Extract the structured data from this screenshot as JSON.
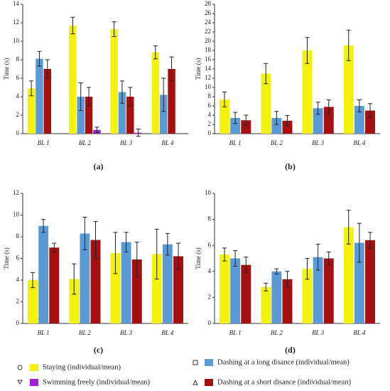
{
  "chart_data": [
    {
      "type": "bar",
      "label": "(a)",
      "ylabel": "Time (s)",
      "categories": [
        "BL 1",
        "BL 2",
        "BL 3",
        "BL 4"
      ],
      "ylim": [
        0,
        14
      ],
      "yticks": [
        0,
        2,
        4,
        6,
        8,
        10,
        12,
        14
      ],
      "series": [
        {
          "name": "Staying (individual/mean)",
          "color": "#f2f20a",
          "values": [
            4.9,
            11.7,
            11.3,
            8.8
          ],
          "errors": [
            0.8,
            0.9,
            0.8,
            0.7
          ]
        },
        {
          "name": "Dashing at a long disance (individual/mean)",
          "color": "#5b9bd5",
          "values": [
            8.1,
            4.0,
            4.5,
            4.2
          ],
          "errors": [
            0.8,
            1.5,
            1.2,
            1.8
          ]
        },
        {
          "name": "Dashing at a short disance (individual/mean)",
          "color": "#a50f0f",
          "values": [
            7.0,
            4.0,
            4.0,
            7.0
          ],
          "errors": [
            1.0,
            1.0,
            1.0,
            1.3
          ]
        },
        {
          "name": "Swimming freely (individual/mean)",
          "color": "#a020d8",
          "values": [
            null,
            0.4,
            0.1,
            null
          ],
          "errors": [
            null,
            0.3,
            0.4,
            null
          ]
        }
      ]
    },
    {
      "type": "bar",
      "label": "(b)",
      "ylabel": "Time (s)",
      "categories": [
        "BL 1",
        "BL 2",
        "BL 3",
        "BL 4"
      ],
      "ylim": [
        0,
        28
      ],
      "yticks": [
        0,
        2,
        4,
        6,
        8,
        10,
        12,
        14,
        16,
        18,
        20,
        22,
        24,
        26,
        28
      ],
      "series": [
        {
          "color": "#f2f20a",
          "values": [
            7.4,
            13.0,
            18.0,
            19.1
          ],
          "errors": [
            1.6,
            2.2,
            2.8,
            3.3
          ]
        },
        {
          "color": "#5b9bd5",
          "values": [
            3.4,
            3.4,
            5.5,
            6.0
          ],
          "errors": [
            1.2,
            1.4,
            1.3,
            1.3
          ]
        },
        {
          "color": "#a50f0f",
          "values": [
            2.9,
            2.8,
            5.8,
            5.0
          ],
          "errors": [
            1.1,
            1.1,
            1.5,
            1.5
          ]
        }
      ]
    },
    {
      "type": "bar",
      "label": "(c)",
      "ylabel": "Time (s)",
      "categories": [
        "BL 1",
        "BL 2",
        "BL 3",
        "BL 4"
      ],
      "ylim": [
        0,
        12
      ],
      "yticks": [
        0,
        2,
        4,
        6,
        8,
        10,
        12
      ],
      "series": [
        {
          "color": "#f2f20a",
          "values": [
            4.0,
            4.1,
            6.5,
            6.4
          ],
          "errors": [
            0.7,
            1.4,
            1.9,
            2.3
          ]
        },
        {
          "color": "#5b9bd5",
          "values": [
            9.0,
            8.3,
            7.5,
            7.3
          ],
          "errors": [
            0.6,
            1.5,
            0.9,
            1.0
          ]
        },
        {
          "color": "#a50f0f",
          "values": [
            7.0,
            7.7,
            5.9,
            6.2
          ],
          "errors": [
            0.4,
            1.7,
            1.6,
            1.2
          ]
        }
      ]
    },
    {
      "type": "bar",
      "label": "(d)",
      "ylabel": "Time (s)",
      "categories": [
        "BL 1",
        "BL 2",
        "BL 3",
        "BL 4"
      ],
      "ylim": [
        0,
        10
      ],
      "yticks": [
        0,
        2,
        4,
        6,
        8,
        10
      ],
      "series": [
        {
          "color": "#f2f20a",
          "values": [
            5.3,
            2.8,
            4.2,
            7.4
          ],
          "errors": [
            0.5,
            0.3,
            0.8,
            1.3
          ]
        },
        {
          "color": "#5b9bd5",
          "values": [
            5.0,
            4.0,
            5.1,
            6.2
          ],
          "errors": [
            0.6,
            0.2,
            1.0,
            1.5
          ]
        },
        {
          "color": "#a50f0f",
          "values": [
            4.5,
            3.4,
            5.0,
            6.4
          ],
          "errors": [
            0.6,
            0.6,
            0.5,
            0.6
          ]
        }
      ]
    }
  ]
}
